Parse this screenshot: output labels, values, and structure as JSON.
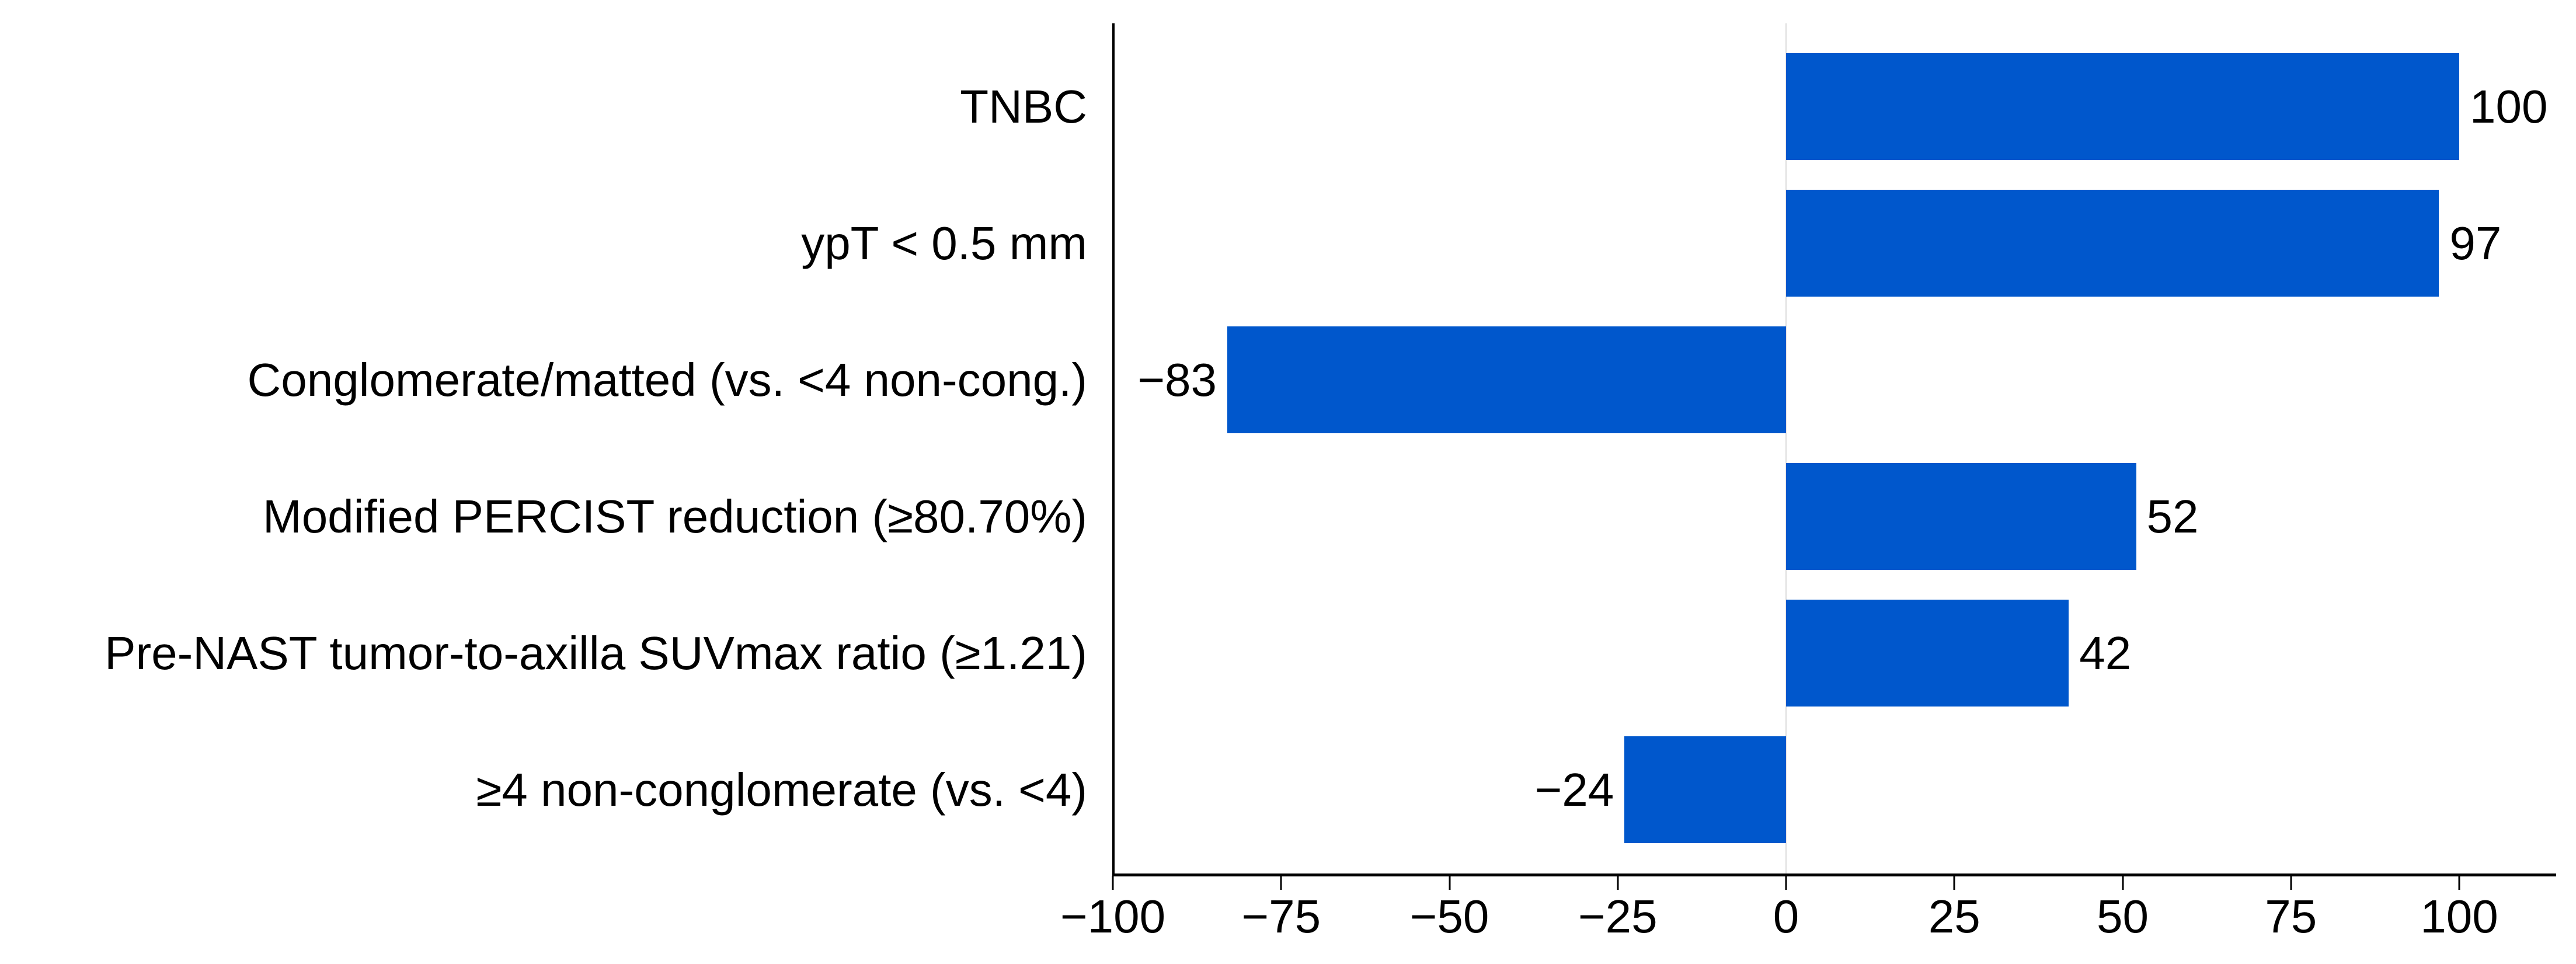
{
  "chart_data": {
    "type": "bar",
    "orientation": "horizontal",
    "title": "",
    "xlabel": "",
    "ylabel": "",
    "xlim": [
      -100,
      114
    ],
    "xticks": [
      -100,
      -75,
      -50,
      -25,
      0,
      25,
      50,
      75,
      100
    ],
    "xtick_labels": [
      "−100",
      "−75",
      "−50",
      "−25",
      "0",
      "25",
      "50",
      "75",
      "100"
    ],
    "categories": [
      "TNBC",
      "ypT < 0.5 mm",
      "Conglomerate/matted (vs. <4 non-cong.)",
      "Modified PERCIST reduction (≥80.70%)",
      "Pre-NAST tumor-to-axilla SUVmax ratio (≥1.21)",
      "≥4 non-conglomerate (vs. <4)"
    ],
    "values": [
      100,
      97,
      -83,
      52,
      42,
      -24
    ],
    "value_labels": [
      "100",
      "97",
      "−83",
      "52",
      "42",
      "−24"
    ],
    "bar_color": "#0057CC",
    "grid": false,
    "legend": null
  }
}
